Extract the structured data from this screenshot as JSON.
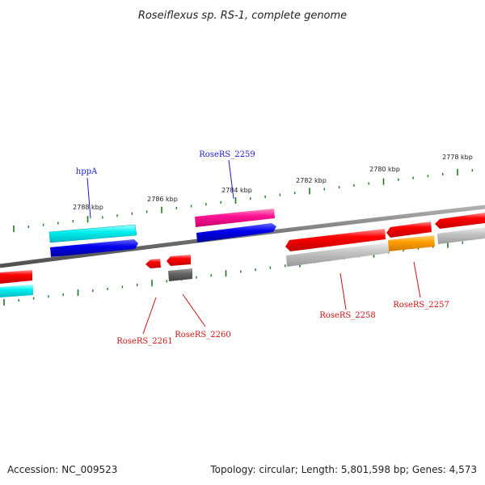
{
  "title": "Roseiflexus sp. RS-1, complete genome",
  "footer": {
    "accession": "Accession: NC_009523",
    "summary": "Topology: circular; Length: 5,801,598 bp; Genes: 4,573"
  },
  "colors": {
    "backbone": "#808080",
    "tick": "#1a7a1a",
    "red": "#ff0000",
    "cyan": "#00e5e5",
    "blue": "#0000e0",
    "pink": "#ff1493",
    "gray": "#c0c0c0",
    "darkgray": "#606060",
    "orange": "#ffa500",
    "label_blue": "#1a1acc",
    "label_red": "#cc1111"
  },
  "scale_labels": [
    "2778 kbp",
    "2780 kbp",
    "2782 kbp",
    "2784 kbp",
    "2786 kbp",
    "2788 kbp"
  ],
  "gene_labels": {
    "hppA": "hppA",
    "RoseRS_2259": "RoseRS_2259",
    "RoseRS_2258": "RoseRS_2258",
    "RoseRS_2257": "RoseRS_2257",
    "RoseRS_2261": "RoseRS_2261",
    "RoseRS_2260": "RoseRS_2260"
  }
}
